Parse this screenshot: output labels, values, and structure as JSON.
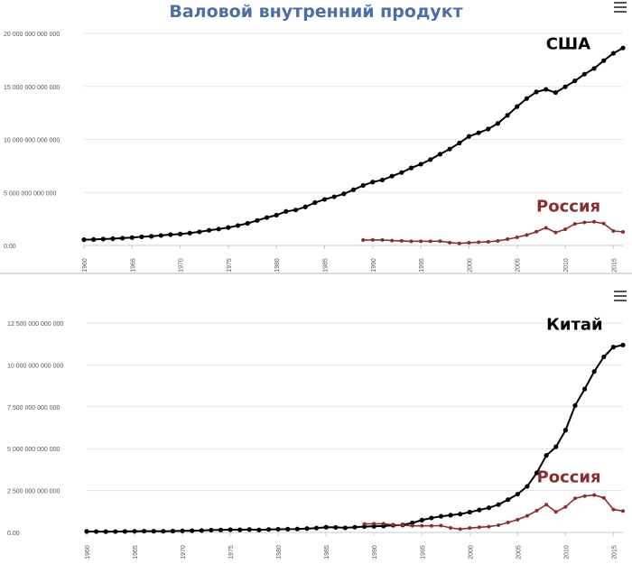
{
  "title": "Валовой внутренний продукт",
  "colors": {
    "title": "#4a6ea8",
    "series_a": "#000000",
    "russia": "#8b2e2e",
    "grid": "#e6e6e6",
    "axis_text": "#555555"
  },
  "icons": {
    "menu": "hamburger-menu-icon"
  },
  "chart_data": [
    {
      "type": "line",
      "title": "",
      "xlabel": "",
      "ylabel": "",
      "xlim": [
        1960,
        2016
      ],
      "ylim": [
        0,
        20000000000000
      ],
      "yticks": [
        0,
        5000000000000,
        10000000000000,
        15000000000000,
        20000000000000
      ],
      "ytick_labels": [
        "0.00",
        "5 000 000 000 000",
        "10 000 000 000 000",
        "15 000 000 000 000",
        "20 000 000 000 000"
      ],
      "xticks": [
        1960,
        1965,
        1970,
        1975,
        1980,
        1985,
        1990,
        1995,
        2000,
        2005,
        2010,
        2015
      ],
      "grid": true,
      "series": [
        {
          "name": "США",
          "color": "#000000",
          "label_year": 2008,
          "label_value": 18500000000000,
          "x": [
            1960,
            1961,
            1962,
            1963,
            1964,
            1965,
            1966,
            1967,
            1968,
            1969,
            1970,
            1971,
            1972,
            1973,
            1974,
            1975,
            1976,
            1977,
            1978,
            1979,
            1980,
            1981,
            1982,
            1983,
            1984,
            1985,
            1986,
            1987,
            1988,
            1989,
            1990,
            1991,
            1992,
            1993,
            1994,
            1995,
            1996,
            1997,
            1998,
            1999,
            2000,
            2001,
            2002,
            2003,
            2004,
            2005,
            2006,
            2007,
            2008,
            2009,
            2010,
            2011,
            2012,
            2013,
            2014,
            2015,
            2016
          ],
          "values": [
            543000000000,
            563000000000,
            605000000000,
            638000000000,
            686000000000,
            744000000000,
            815000000000,
            862000000000,
            943000000000,
            1020000000000,
            1075000000000,
            1168000000000,
            1282000000000,
            1429000000000,
            1549000000000,
            1689000000000,
            1878000000000,
            2086000000000,
            2357000000000,
            2632000000000,
            2863000000000,
            3211000000000,
            3345000000000,
            3638000000000,
            4041000000000,
            4347000000000,
            4590000000000,
            4870000000000,
            5253000000000,
            5658000000000,
            5980000000000,
            6174000000000,
            6539000000000,
            6879000000000,
            7309000000000,
            7664000000000,
            8100000000000,
            8609000000000,
            9089000000000,
            9661000000000,
            10285000000000,
            10622000000000,
            10978000000000,
            11511000000000,
            12275000000000,
            13094000000000,
            13856000000000,
            14478000000000,
            14719000000000,
            14419000000000,
            14964000000000,
            15518000000000,
            16155000000000,
            16692000000000,
            17428000000000,
            18121000000000,
            18624000000000
          ]
        },
        {
          "name": "Россия",
          "color": "#8b2e2e",
          "label_year": 2007,
          "label_value": 3200000000000,
          "x": [
            1989,
            1990,
            1991,
            1992,
            1993,
            1994,
            1995,
            1996,
            1997,
            1998,
            1999,
            2000,
            2001,
            2002,
            2003,
            2004,
            2005,
            2006,
            2007,
            2008,
            2009,
            2010,
            2011,
            2012,
            2013,
            2014,
            2015,
            2016
          ],
          "values": [
            506000000000,
            517000000000,
            518000000000,
            460000000000,
            435000000000,
            395000000000,
            396000000000,
            392000000000,
            405000000000,
            271000000000,
            196000000000,
            260000000000,
            307000000000,
            345000000000,
            430000000000,
            591000000000,
            764000000000,
            990000000000,
            1300000000000,
            1660000000000,
            1223000000000,
            1525000000000,
            2031000000000,
            2170000000000,
            2231000000000,
            2064000000000,
            1366000000000,
            1280000000000
          ]
        }
      ]
    },
    {
      "type": "line",
      "title": "",
      "xlabel": "",
      "ylabel": "",
      "xlim": [
        1960,
        2016
      ],
      "ylim": [
        0,
        12500000000000
      ],
      "yticks": [
        0,
        2500000000000,
        5000000000000,
        7500000000000,
        10000000000000,
        12500000000000
      ],
      "ytick_labels": [
        "0.00",
        "2 500 000 000 000",
        "5 000 000 000 000",
        "7 500 000 000 000",
        "10 000 000 000 000",
        "12 500 000 000 000"
      ],
      "xticks": [
        1960,
        1965,
        1970,
        1975,
        1980,
        1985,
        1990,
        1995,
        2000,
        2005,
        2010,
        2015
      ],
      "grid": true,
      "series": [
        {
          "name": "Китай",
          "color": "#000000",
          "label_year": 2008,
          "label_value": 12100000000000,
          "x": [
            1960,
            1961,
            1962,
            1963,
            1964,
            1965,
            1966,
            1967,
            1968,
            1969,
            1970,
            1971,
            1972,
            1973,
            1974,
            1975,
            1976,
            1977,
            1978,
            1979,
            1980,
            1981,
            1982,
            1983,
            1984,
            1985,
            1986,
            1987,
            1988,
            1989,
            1990,
            1991,
            1992,
            1993,
            1994,
            1995,
            1996,
            1997,
            1998,
            1999,
            2000,
            2001,
            2002,
            2003,
            2004,
            2005,
            2006,
            2007,
            2008,
            2009,
            2010,
            2011,
            2012,
            2013,
            2014,
            2015,
            2016
          ],
          "values": [
            59700000000,
            50100000000,
            47200000000,
            50700000000,
            59700000000,
            70400000000,
            76700000000,
            72900000000,
            70800000000,
            79700000000,
            92600000000,
            99800000000,
            113700000000,
            138500000000,
            144200000000,
            163400000000,
            153900000000,
            174900000000,
            149500000000,
            178300000000,
            191100000000,
            195900000000,
            205100000000,
            230700000000,
            259900000000,
            309500000000,
            300800000000,
            272900000000,
            312400000000,
            347800000000,
            360900000000,
            383400000000,
            426900000000,
            444700000000,
            564300000000,
            734500000000,
            863700000000,
            961600000000,
            1029000000000,
            1094000000000,
            1211000000000,
            1339000000000,
            1471000000000,
            1660000000000,
            1955000000000,
            2286000000000,
            2752000000000,
            3552000000000,
            4598000000000,
            5110000000000,
            6101000000000,
            7573000000000,
            8561000000000,
            9607000000000,
            10482000000000,
            11065000000000,
            11191000000000
          ]
        },
        {
          "name": "Россия",
          "color": "#8b2e2e",
          "label_year": 2007,
          "label_value": 3000000000000,
          "x": [
            1989,
            1990,
            1991,
            1992,
            1993,
            1994,
            1995,
            1996,
            1997,
            1998,
            1999,
            2000,
            2001,
            2002,
            2003,
            2004,
            2005,
            2006,
            2007,
            2008,
            2009,
            2010,
            2011,
            2012,
            2013,
            2014,
            2015,
            2016
          ],
          "values": [
            506000000000,
            517000000000,
            518000000000,
            460000000000,
            435000000000,
            395000000000,
            396000000000,
            392000000000,
            405000000000,
            271000000000,
            196000000000,
            260000000000,
            307000000000,
            345000000000,
            430000000000,
            591000000000,
            764000000000,
            990000000000,
            1300000000000,
            1660000000000,
            1223000000000,
            1525000000000,
            2031000000000,
            2170000000000,
            2231000000000,
            2064000000000,
            1366000000000,
            1280000000000
          ]
        }
      ]
    }
  ]
}
